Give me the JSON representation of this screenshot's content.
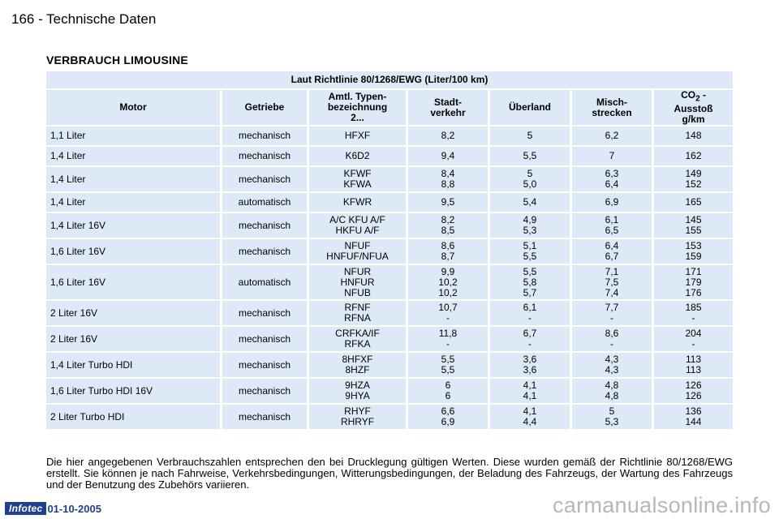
{
  "header": {
    "page_title": "166 - Technische Daten"
  },
  "section": {
    "title": "VERBRAUCH LIMOUSINE"
  },
  "table": {
    "span_header": "Laut Richtlinie 80/1268/EWG (Liter/100 km)",
    "columns": {
      "motor": "Motor",
      "getriebe": "Getriebe",
      "typ": [
        "Amtl. Typen-",
        "bezeichnung",
        "2..."
      ],
      "stadt": [
        "Stadt-",
        "verkehr"
      ],
      "ueberland": "Überland",
      "misch": [
        "Misch-",
        "strecken"
      ],
      "co2": {
        "prefix": "CO",
        "sub": "2",
        "suffix": " -",
        "line2": "Ausstoß",
        "line3": "g/km"
      }
    },
    "rows": [
      {
        "motor": "1,1 Liter",
        "getriebe": "mechanisch",
        "typ": [
          "HFXF"
        ],
        "stadt": [
          "8,2"
        ],
        "ueberland": [
          "5"
        ],
        "misch": [
          "6,2"
        ],
        "co2": [
          "148"
        ]
      },
      {
        "motor": "1,4 Liter",
        "getriebe": "mechanisch",
        "typ": [
          "K6D2"
        ],
        "stadt": [
          "9,4"
        ],
        "ueberland": [
          "5,5"
        ],
        "misch": [
          "7"
        ],
        "co2": [
          "162"
        ]
      },
      {
        "motor": "1,4 Liter",
        "getriebe": "mechanisch",
        "typ": [
          "KFWF",
          "KFWA"
        ],
        "stadt": [
          "8,4",
          "8,8"
        ],
        "ueberland": [
          "5",
          "5,0"
        ],
        "misch": [
          "6,3",
          "6,4"
        ],
        "co2": [
          "149",
          "152"
        ]
      },
      {
        "motor": "1,4 Liter",
        "getriebe": "automatisch",
        "typ": [
          "KFWR"
        ],
        "stadt": [
          "9,5"
        ],
        "ueberland": [
          "5,4"
        ],
        "misch": [
          "6,9"
        ],
        "co2": [
          "165"
        ]
      },
      {
        "motor": "1,4 Liter 16V",
        "getriebe": "mechanisch",
        "typ": [
          "A/C KFU A/F",
          "HKFU A/F"
        ],
        "stadt": [
          "8,2",
          "8,5"
        ],
        "ueberland": [
          "4,9",
          "5,3"
        ],
        "misch": [
          "6,1",
          "6,5"
        ],
        "co2": [
          "145",
          "155"
        ]
      },
      {
        "motor": "1,6 Liter 16V",
        "getriebe": "mechanisch",
        "typ": [
          "NFUF",
          "HNFUF/NFUA"
        ],
        "stadt": [
          "8,6",
          "8,7"
        ],
        "ueberland": [
          "5,1",
          "5,5"
        ],
        "misch": [
          "6,4",
          "6,7"
        ],
        "co2": [
          "153",
          "159"
        ]
      },
      {
        "motor": "1,6 Liter 16V",
        "getriebe": "automatisch",
        "typ": [
          "NFUR",
          "HNFUR",
          "NFUB"
        ],
        "stadt": [
          "9,9",
          "10,2",
          "10,2"
        ],
        "ueberland": [
          "5,5",
          "5,8",
          "5,7"
        ],
        "misch": [
          "7,1",
          "7,5",
          "7,4"
        ],
        "co2": [
          "171",
          "179",
          "176"
        ]
      },
      {
        "motor": "2 Liter 16V",
        "getriebe": "mechanisch",
        "typ": [
          "RFNF",
          "RFNA"
        ],
        "stadt": [
          "10,7",
          "-"
        ],
        "ueberland": [
          "6,1",
          "-"
        ],
        "misch": [
          "7,7",
          "-"
        ],
        "co2": [
          "185",
          "-"
        ]
      },
      {
        "motor": "2 Liter 16V",
        "getriebe": "mechanisch",
        "typ": [
          "CRFKA/IF",
          "RFKA"
        ],
        "stadt": [
          "11,8",
          "-"
        ],
        "ueberland": [
          "6,7",
          "-"
        ],
        "misch": [
          "8,6",
          "-"
        ],
        "co2": [
          "204",
          "-"
        ]
      },
      {
        "motor": "1,4 Liter Turbo HDI",
        "getriebe": "mechanisch",
        "typ": [
          "8HFXF",
          "8HZF"
        ],
        "stadt": [
          "5,5",
          "5,5"
        ],
        "ueberland": [
          "3,6",
          "3,6"
        ],
        "misch": [
          "4,3",
          "4,3"
        ],
        "co2": [
          "113",
          "113"
        ]
      },
      {
        "motor": "1,6 Liter Turbo HDI 16V",
        "getriebe": "mechanisch",
        "typ": [
          "9HZA",
          "9HYA"
        ],
        "stadt": [
          "6",
          "6"
        ],
        "ueberland": [
          "4,1",
          "4,1"
        ],
        "misch": [
          "4,8",
          "4,8"
        ],
        "co2": [
          "126",
          "126"
        ]
      },
      {
        "motor": "2 Liter Turbo HDI",
        "getriebe": "mechanisch",
        "typ": [
          "RHYF",
          "RHRYF"
        ],
        "stadt": [
          "6,6",
          "6,9"
        ],
        "ueberland": [
          "4,1",
          "4,4"
        ],
        "misch": [
          "5",
          "5,3"
        ],
        "co2": [
          "136",
          "144"
        ]
      }
    ]
  },
  "footnote": "Die hier angegebenen Verbrauchszahlen entsprechen den bei Drucklegung gültigen Werten. Diese wurden gemäß der Richtlinie 80/1268/EWG erstellt. Sie können je nach Fahrweise, Verkehrsbedingungen, Witterungsbedingungen, der Beladung des Fahrzeugs, der Wartung des Fahrzeugs und der Benutzung des Zubehörs variieren.",
  "footer": {
    "logo_text": "Infotec",
    "date": "01-10-2005"
  },
  "watermark": "carmanualsonline.info",
  "colors": {
    "cell_background": "#dde9f7",
    "footer_blue": "#1f3f8f"
  }
}
